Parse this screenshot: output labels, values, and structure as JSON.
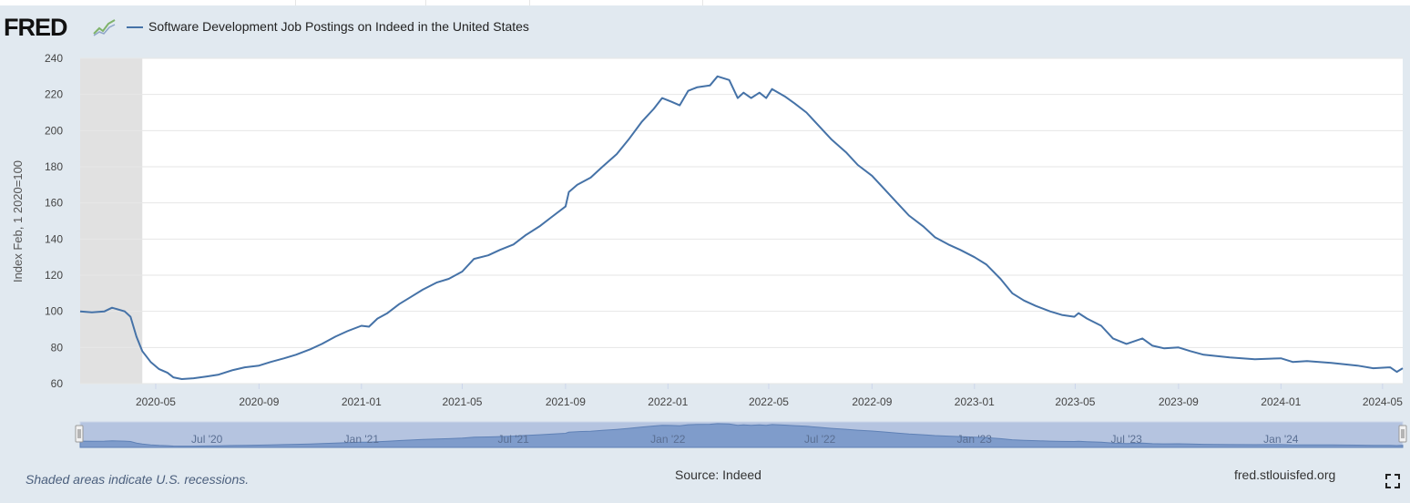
{
  "header": {
    "logo_text": "FRED",
    "legend_label": "Software Development Job Postings on Indeed in the United States"
  },
  "footer": {
    "recession_note": "Shaded areas indicate U.S. recessions.",
    "source": "Source: Indeed",
    "site": "fred.stlouisfed.org"
  },
  "colors": {
    "series": "#4572a7",
    "recession": "#e1e1e1",
    "panel": "#e1e9f0",
    "navigator_fill": "#7f9ccb"
  },
  "icons": {
    "logo_graph": "small-line-graph-icon",
    "fullscreen": "fullscreen-icon",
    "navigator_handle": "drag-handle-icon"
  },
  "chart_data": {
    "type": "line",
    "title": "Software Development Job Postings on Indeed in the United States",
    "ylabel": "Index Feb, 1 2020=100",
    "xlabel": "",
    "ylim": [
      60,
      240
    ],
    "yticks": [
      "60",
      "80",
      "100",
      "120",
      "140",
      "160",
      "180",
      "200",
      "220",
      "240"
    ],
    "xlim": [
      "2020-02-01",
      "2024-05-25"
    ],
    "xticks": [
      {
        "date": "2020-05-01",
        "label": "2020-05"
      },
      {
        "date": "2020-09-01",
        "label": "2020-09"
      },
      {
        "date": "2021-01-01",
        "label": "2021-01"
      },
      {
        "date": "2021-05-01",
        "label": "2021-05"
      },
      {
        "date": "2021-09-01",
        "label": "2021-09"
      },
      {
        "date": "2022-01-01",
        "label": "2022-01"
      },
      {
        "date": "2022-05-01",
        "label": "2022-05"
      },
      {
        "date": "2022-09-01",
        "label": "2022-09"
      },
      {
        "date": "2023-01-01",
        "label": "2023-01"
      },
      {
        "date": "2023-05-01",
        "label": "2023-05"
      },
      {
        "date": "2023-09-01",
        "label": "2023-09"
      },
      {
        "date": "2024-01-01",
        "label": "2024-01"
      },
      {
        "date": "2024-05-01",
        "label": "2024-05"
      }
    ],
    "recession": {
      "start": "2020-02-01",
      "end": "2020-04-15"
    },
    "grid": true,
    "legend_position": "top",
    "navigator_labels": [
      {
        "date": "2020-07-01",
        "label": "Jul '20"
      },
      {
        "date": "2021-01-01",
        "label": "Jan '21"
      },
      {
        "date": "2021-07-01",
        "label": "Jul '21"
      },
      {
        "date": "2022-01-01",
        "label": "Jan '22"
      },
      {
        "date": "2022-07-01",
        "label": "Jul '22"
      },
      {
        "date": "2023-01-01",
        "label": "Jan '23"
      },
      {
        "date": "2023-07-01",
        "label": "Jul '23"
      },
      {
        "date": "2024-01-01",
        "label": "Jan '24"
      }
    ],
    "series": [
      {
        "name": "Software Development Job Postings on Indeed in the United States",
        "points": [
          [
            "2020-02-01",
            100
          ],
          [
            "2020-02-15",
            99.5
          ],
          [
            "2020-03-01",
            100
          ],
          [
            "2020-03-10",
            102
          ],
          [
            "2020-03-25",
            100
          ],
          [
            "2020-04-01",
            97
          ],
          [
            "2020-04-08",
            86
          ],
          [
            "2020-04-15",
            78
          ],
          [
            "2020-04-25",
            72
          ],
          [
            "2020-05-05",
            68
          ],
          [
            "2020-05-15",
            66
          ],
          [
            "2020-05-22",
            63.5
          ],
          [
            "2020-06-01",
            62.5
          ],
          [
            "2020-06-15",
            63
          ],
          [
            "2020-07-01",
            64
          ],
          [
            "2020-07-15",
            65
          ],
          [
            "2020-08-01",
            67.5
          ],
          [
            "2020-08-15",
            69
          ],
          [
            "2020-09-01",
            70
          ],
          [
            "2020-09-15",
            72
          ],
          [
            "2020-10-01",
            74
          ],
          [
            "2020-10-15",
            76
          ],
          [
            "2020-11-01",
            79
          ],
          [
            "2020-11-15",
            82
          ],
          [
            "2020-12-01",
            86
          ],
          [
            "2020-12-15",
            89
          ],
          [
            "2021-01-01",
            92
          ],
          [
            "2021-01-10",
            91.5
          ],
          [
            "2021-01-20",
            96
          ],
          [
            "2021-02-01",
            99
          ],
          [
            "2021-02-15",
            104
          ],
          [
            "2021-03-01",
            108
          ],
          [
            "2021-03-15",
            112
          ],
          [
            "2021-04-01",
            116
          ],
          [
            "2021-04-15",
            118
          ],
          [
            "2021-05-01",
            122
          ],
          [
            "2021-05-15",
            129
          ],
          [
            "2021-06-01",
            131
          ],
          [
            "2021-06-15",
            134
          ],
          [
            "2021-07-01",
            137
          ],
          [
            "2021-07-15",
            142
          ],
          [
            "2021-08-01",
            147
          ],
          [
            "2021-08-15",
            152
          ],
          [
            "2021-09-01",
            158
          ],
          [
            "2021-09-05",
            166
          ],
          [
            "2021-09-15",
            170
          ],
          [
            "2021-10-01",
            174
          ],
          [
            "2021-10-15",
            180
          ],
          [
            "2021-11-01",
            187
          ],
          [
            "2021-11-15",
            195
          ],
          [
            "2021-12-01",
            205
          ],
          [
            "2021-12-15",
            212
          ],
          [
            "2021-12-25",
            218
          ],
          [
            "2022-01-05",
            216
          ],
          [
            "2022-01-15",
            214
          ],
          [
            "2022-01-25",
            222
          ],
          [
            "2022-02-05",
            224
          ],
          [
            "2022-02-20",
            225
          ],
          [
            "2022-03-01",
            230
          ],
          [
            "2022-03-15",
            228
          ],
          [
            "2022-03-25",
            218
          ],
          [
            "2022-04-01",
            221
          ],
          [
            "2022-04-10",
            218
          ],
          [
            "2022-04-20",
            221
          ],
          [
            "2022-04-28",
            218
          ],
          [
            "2022-05-05",
            223
          ],
          [
            "2022-05-20",
            219
          ],
          [
            "2022-06-01",
            215
          ],
          [
            "2022-06-15",
            210
          ],
          [
            "2022-07-01",
            202
          ],
          [
            "2022-07-15",
            195
          ],
          [
            "2022-08-01",
            188
          ],
          [
            "2022-08-15",
            181
          ],
          [
            "2022-09-01",
            175
          ],
          [
            "2022-09-15",
            168
          ],
          [
            "2022-10-01",
            160
          ],
          [
            "2022-10-15",
            153
          ],
          [
            "2022-11-01",
            147
          ],
          [
            "2022-11-15",
            141
          ],
          [
            "2022-12-01",
            137
          ],
          [
            "2022-12-15",
            134
          ],
          [
            "2023-01-01",
            130
          ],
          [
            "2023-01-15",
            126
          ],
          [
            "2023-02-01",
            118
          ],
          [
            "2023-02-15",
            110
          ],
          [
            "2023-03-01",
            106
          ],
          [
            "2023-03-15",
            103
          ],
          [
            "2023-04-01",
            100
          ],
          [
            "2023-04-15",
            98
          ],
          [
            "2023-04-30",
            97
          ],
          [
            "2023-05-05",
            99
          ],
          [
            "2023-05-15",
            96
          ],
          [
            "2023-06-01",
            92
          ],
          [
            "2023-06-15",
            85
          ],
          [
            "2023-07-01",
            82
          ],
          [
            "2023-07-20",
            85
          ],
          [
            "2023-08-01",
            81
          ],
          [
            "2023-08-15",
            79.5
          ],
          [
            "2023-09-01",
            80
          ],
          [
            "2023-09-15",
            78
          ],
          [
            "2023-10-01",
            76
          ],
          [
            "2023-11-01",
            74.5
          ],
          [
            "2023-12-01",
            73.5
          ],
          [
            "2024-01-01",
            74
          ],
          [
            "2024-01-15",
            72
          ],
          [
            "2024-02-01",
            72.5
          ],
          [
            "2024-03-01",
            71.5
          ],
          [
            "2024-04-01",
            70
          ],
          [
            "2024-04-20",
            68.5
          ],
          [
            "2024-05-10",
            69
          ],
          [
            "2024-05-18",
            66.5
          ],
          [
            "2024-05-25",
            68.5
          ]
        ]
      }
    ]
  }
}
